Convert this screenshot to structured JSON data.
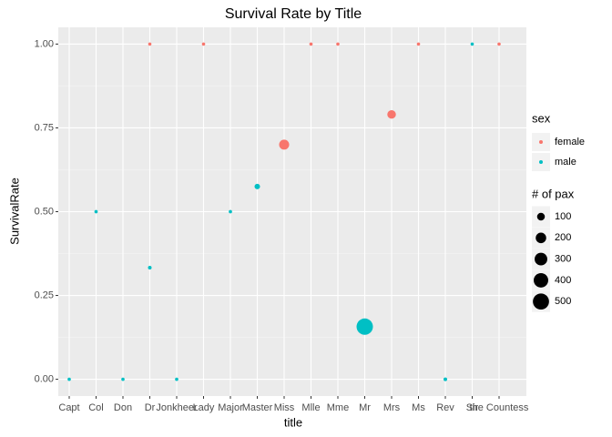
{
  "chart_data": {
    "type": "scatter",
    "title": "Survival Rate by Title",
    "x_label": "title",
    "y_label": "SurvivalRate",
    "categories": [
      "Capt",
      "Col",
      "Don",
      "Dr",
      "Jonkheer",
      "Lady",
      "Major",
      "Master",
      "Miss",
      "Mlle",
      "Mme",
      "Mr",
      "Mrs",
      "Ms",
      "Rev",
      "Sir",
      "the Countess"
    ],
    "series": [
      {
        "name": "female",
        "color": "#F8766D",
        "values": [
          null,
          null,
          null,
          1,
          null,
          1,
          null,
          null,
          0.7,
          1,
          1,
          null,
          0.79,
          1,
          null,
          null,
          1
        ],
        "sizes": [
          null,
          null,
          null,
          1,
          null,
          1,
          null,
          null,
          182,
          2,
          1,
          null,
          125,
          1,
          null,
          null,
          1
        ]
      },
      {
        "name": "male",
        "color": "#00BFC4",
        "values": [
          0,
          0.5,
          0,
          0.333,
          0,
          null,
          0.5,
          0.575,
          null,
          null,
          null,
          0.157,
          null,
          null,
          0,
          1,
          null
        ],
        "sizes": [
          1,
          2,
          1,
          6,
          1,
          null,
          2,
          40,
          null,
          null,
          null,
          517,
          null,
          null,
          6,
          1,
          null
        ]
      }
    ],
    "ylim": [
      -0.05,
      1.05
    ],
    "yticks": [
      {
        "value": 0,
        "label": "0.00"
      },
      {
        "value": 0.25,
        "label": "0.25"
      },
      {
        "value": 0.5,
        "label": "0.50"
      },
      {
        "value": 0.75,
        "label": "0.75"
      },
      {
        "value": 1,
        "label": "1.00"
      }
    ],
    "grid": true,
    "legend_title": "sex",
    "size_legend_title": "# of pax",
    "size_legend": [
      100,
      200,
      300,
      400,
      500
    ]
  }
}
